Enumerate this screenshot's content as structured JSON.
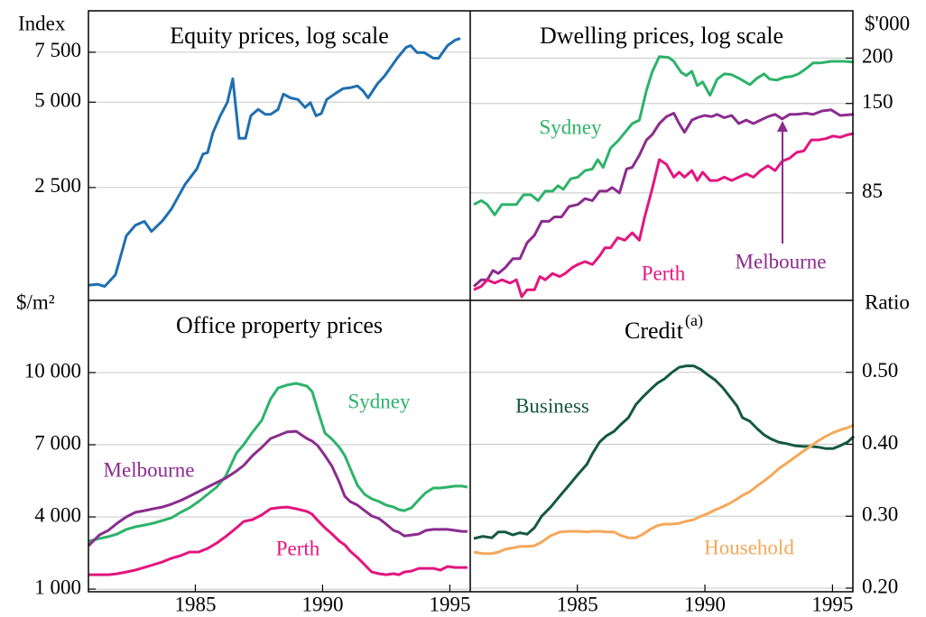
{
  "chart_data": [
    {
      "type": "line",
      "title": "Equity prices, log scale",
      "y_unit": "Index",
      "log_scale": true,
      "grid": true,
      "xlim": [
        1980.8,
        1995.8
      ],
      "ylim": [
        1000,
        10500
      ],
      "yticks": [
        {
          "value": 2500,
          "label": "2 500"
        },
        {
          "value": 5000,
          "label": "5 000"
        },
        {
          "value": 7500,
          "label": "7 500"
        }
      ],
      "series": [
        {
          "color": "#1f6fb0",
          "x": [
            1980.8,
            1981.15,
            1981.44,
            1981.86,
            1982.29,
            1982.64,
            1983.0,
            1983.28,
            1983.71,
            1984.06,
            1984.59,
            1985.06,
            1985.3,
            1985.48,
            1985.69,
            1985.98,
            1986.26,
            1986.47,
            1986.72,
            1986.97,
            1987.18,
            1987.47,
            1987.75,
            1987.96,
            1988.25,
            1988.46,
            1988.74,
            1989.03,
            1989.31,
            1989.52,
            1989.74,
            1989.95,
            1990.16,
            1990.52,
            1990.8,
            1991.08,
            1991.37,
            1991.58,
            1991.79,
            1992.15,
            1992.43,
            1992.93,
            1993.28,
            1993.46,
            1993.71,
            1993.99,
            1994.35,
            1994.56,
            1994.91,
            1995.2,
            1995.41
          ],
          "values": [
            1130,
            1140,
            1120,
            1230,
            1690,
            1840,
            1900,
            1750,
            1910,
            2100,
            2560,
            2910,
            3280,
            3320,
            3900,
            4480,
            5000,
            6050,
            3730,
            3730,
            4480,
            4720,
            4530,
            4530,
            4720,
            5340,
            5180,
            5110,
            4790,
            4980,
            4480,
            4560,
            5110,
            5380,
            5580,
            5620,
            5710,
            5490,
            5180,
            5800,
            6180,
            7150,
            7800,
            7920,
            7480,
            7480,
            7150,
            7150,
            7920,
            8270,
            8400
          ]
        }
      ]
    },
    {
      "type": "line",
      "title": "Dwelling prices, log scale",
      "y_unit": "$'000",
      "log_scale": true,
      "grid": true,
      "xlim": [
        1980.8,
        1995.8
      ],
      "ylim": [
        43,
        270
      ],
      "yticks": [
        85,
        150,
        200
      ],
      "series": [
        {
          "name": "Sydney",
          "color": "#2db36a",
          "x": [
            1980.94,
            1981.23,
            1981.47,
            1981.76,
            1982.04,
            1982.36,
            1982.61,
            1982.89,
            1983.18,
            1983.46,
            1983.74,
            1984.03,
            1984.24,
            1984.45,
            1984.74,
            1985.02,
            1985.3,
            1985.59,
            1985.8,
            1986.01,
            1986.3,
            1986.58,
            1986.79,
            1987.15,
            1987.43,
            1987.71,
            1987.93,
            1988.21,
            1988.57,
            1988.78,
            1989.06,
            1989.27,
            1989.49,
            1989.7,
            1989.91,
            1990.2,
            1990.48,
            1990.76,
            1991.05,
            1991.4,
            1991.76,
            1992.04,
            1992.32,
            1992.54,
            1992.82,
            1993.1,
            1993.39,
            1993.67,
            1993.96,
            1994.24,
            1994.52,
            1994.95,
            1995.48,
            1995.84
          ],
          "values": [
            79,
            81,
            79,
            74,
            79,
            79,
            79,
            84,
            84,
            81,
            86,
            86,
            89,
            87,
            93,
            94,
            98,
            99,
            105,
            100,
            113,
            118,
            123,
            132,
            135,
            163,
            183,
            202,
            201,
            196,
            183,
            179,
            184,
            168,
            172,
            158,
            175,
            181,
            180,
            175,
            169,
            176,
            181,
            175,
            174,
            177,
            178,
            181,
            187,
            194,
            194,
            196,
            196,
            195
          ]
        },
        {
          "name": "Melbourne",
          "color": "#8b2c8e",
          "x": [
            1980.94,
            1981.23,
            1981.47,
            1981.69,
            1981.9,
            1982.18,
            1982.47,
            1982.75,
            1983.03,
            1983.32,
            1983.6,
            1983.89,
            1984.1,
            1984.38,
            1984.67,
            1985.02,
            1985.3,
            1985.59,
            1985.87,
            1986.15,
            1986.37,
            1986.65,
            1986.93,
            1987.15,
            1987.43,
            1987.71,
            1987.93,
            1988.21,
            1988.49,
            1988.78,
            1988.99,
            1989.2,
            1989.49,
            1989.7,
            1989.98,
            1990.27,
            1990.48,
            1990.76,
            1991.05,
            1991.33,
            1991.62,
            1991.9,
            1992.18,
            1992.47,
            1992.75,
            1993.03,
            1993.32,
            1993.6,
            1993.96,
            1994.24,
            1994.59,
            1994.95,
            1995.3,
            1995.84
          ],
          "values": [
            47,
            49,
            49,
            52,
            51,
            53,
            56,
            56,
            62,
            65,
            71,
            71,
            73,
            73,
            78,
            79,
            82,
            81,
            86,
            86,
            88,
            85,
            99,
            100,
            108,
            119,
            123,
            132,
            138,
            141,
            132,
            125,
            135,
            137,
            139,
            138,
            140,
            137,
            139,
            132,
            135,
            132,
            135,
            138,
            140,
            136,
            140,
            140,
            141,
            140,
            143,
            144,
            139,
            140
          ]
        },
        {
          "name": "Perth",
          "color": "#e2167f",
          "x": [
            1980.94,
            1981.23,
            1981.47,
            1981.76,
            1982.04,
            1982.36,
            1982.61,
            1982.82,
            1983.03,
            1983.32,
            1983.53,
            1983.74,
            1984.03,
            1984.31,
            1984.52,
            1984.81,
            1985.02,
            1985.3,
            1985.59,
            1985.87,
            1986.08,
            1986.3,
            1986.58,
            1986.86,
            1987.15,
            1987.43,
            1987.64,
            1987.93,
            1988.21,
            1988.49,
            1988.78,
            1988.99,
            1989.2,
            1989.49,
            1989.7,
            1989.91,
            1990.2,
            1990.48,
            1990.76,
            1991.05,
            1991.33,
            1991.62,
            1991.9,
            1992.18,
            1992.47,
            1992.75,
            1993.03,
            1993.32,
            1993.6,
            1993.88,
            1994.17,
            1994.45,
            1994.74,
            1995.02,
            1995.3,
            1995.59,
            1995.84
          ],
          "values": [
            46,
            47,
            49,
            48,
            49,
            48,
            49,
            44,
            46,
            46,
            50,
            49,
            51,
            50,
            51,
            53,
            54,
            55,
            54,
            57,
            60,
            60,
            64,
            63,
            66,
            63,
            73,
            87,
            105,
            102,
            94,
            97,
            94,
            98,
            92,
            97,
            92,
            92,
            94,
            92,
            94,
            96,
            94,
            98,
            101,
            98,
            104,
            106,
            110,
            111,
            119,
            119,
            120,
            122,
            121,
            123,
            124
          ]
        }
      ]
    },
    {
      "type": "line",
      "title": "Office property prices",
      "y_unit": "$/m²",
      "log_scale": false,
      "grid": true,
      "xlim": [
        1980.8,
        1995.8
      ],
      "ylim": [
        890,
        13000
      ],
      "xticks": [
        1985,
        1990,
        1995
      ],
      "yticks": [
        {
          "value": 1000,
          "label": "1 000"
        },
        {
          "value": 4000,
          "label": "4 000"
        },
        {
          "value": 7000,
          "label": "7 000"
        },
        {
          "value": 10000,
          "label": "10 000"
        }
      ],
      "x": [
        1980.8,
        1981.23,
        1981.58,
        1981.93,
        1982.29,
        1982.64,
        1983.0,
        1983.35,
        1983.71,
        1984.06,
        1984.42,
        1984.77,
        1985.13,
        1985.48,
        1985.84,
        1986.19,
        1986.62,
        1986.9,
        1987.25,
        1987.61,
        1987.96,
        1988.25,
        1988.6,
        1988.96,
        1989.38,
        1989.59,
        1989.81,
        1990.09,
        1990.37,
        1990.66,
        1990.87,
        1991.08,
        1991.37,
        1991.65,
        1991.93,
        1992.22,
        1992.5,
        1992.79,
        1993.0,
        1993.21,
        1993.49,
        1993.78,
        1994.06,
        1994.35,
        1994.63,
        1994.91,
        1995.2,
        1995.48,
        1995.69
      ],
      "series": [
        {
          "name": "Sydney",
          "color": "#2db36a",
          "values": [
            2990,
            3100,
            3180,
            3290,
            3480,
            3590,
            3660,
            3740,
            3850,
            3960,
            4190,
            4380,
            4640,
            4940,
            5240,
            5690,
            6660,
            7000,
            7530,
            8010,
            8910,
            9360,
            9480,
            9550,
            9440,
            9210,
            8430,
            7490,
            7230,
            6890,
            6550,
            6030,
            5310,
            4940,
            4750,
            4640,
            4490,
            4410,
            4300,
            4260,
            4380,
            4710,
            5010,
            5200,
            5200,
            5240,
            5280,
            5280,
            5240
          ]
        },
        {
          "name": "Melbourne",
          "color": "#8b2c8e",
          "values": [
            2800,
            3250,
            3440,
            3740,
            4000,
            4190,
            4260,
            4340,
            4410,
            4530,
            4680,
            4860,
            5050,
            5240,
            5430,
            5610,
            5910,
            6140,
            6550,
            6890,
            7260,
            7380,
            7530,
            7560,
            7260,
            7150,
            6960,
            6550,
            6100,
            5430,
            4860,
            4640,
            4490,
            4260,
            4040,
            3930,
            3700,
            3440,
            3360,
            3210,
            3250,
            3290,
            3440,
            3480,
            3480,
            3480,
            3440,
            3400,
            3400
          ]
        },
        {
          "name": "Perth",
          "color": "#e2167f",
          "values": [
            1600,
            1600,
            1600,
            1640,
            1710,
            1790,
            1900,
            2010,
            2130,
            2280,
            2390,
            2540,
            2540,
            2690,
            2910,
            3180,
            3550,
            3810,
            3890,
            4080,
            4340,
            4380,
            4410,
            4340,
            4230,
            4110,
            3850,
            3550,
            3290,
            2990,
            2840,
            2580,
            2310,
            2010,
            1710,
            1640,
            1600,
            1640,
            1600,
            1710,
            1750,
            1860,
            1860,
            1860,
            1790,
            1940,
            1900,
            1900,
            1900
          ]
        }
      ]
    },
    {
      "type": "line",
      "title": "Credit",
      "title_superscript": "(a)",
      "y_unit": "Ratio",
      "log_scale": false,
      "grid": true,
      "xlim": [
        1980.8,
        1995.8
      ],
      "ylim": [
        0.195,
        0.6
      ],
      "xticks": [
        1985,
        1990,
        1995
      ],
      "yticks": [
        {
          "value": 0.2,
          "label": "0.20"
        },
        {
          "value": 0.3,
          "label": "0.30"
        },
        {
          "value": 0.4,
          "label": "0.40"
        },
        {
          "value": 0.5,
          "label": "0.50"
        }
      ],
      "x": [
        1980.94,
        1981.3,
        1981.65,
        1981.9,
        1982.18,
        1982.47,
        1982.75,
        1983.03,
        1983.32,
        1983.6,
        1983.96,
        1984.31,
        1984.67,
        1985.02,
        1985.37,
        1985.59,
        1985.87,
        1986.15,
        1986.44,
        1986.72,
        1987.0,
        1987.29,
        1987.57,
        1987.86,
        1988.14,
        1988.42,
        1988.71,
        1988.99,
        1989.27,
        1989.56,
        1989.84,
        1990.13,
        1990.41,
        1990.69,
        1990.98,
        1991.26,
        1991.47,
        1991.76,
        1992.04,
        1992.32,
        1992.61,
        1992.89,
        1993.18,
        1993.53,
        1993.88,
        1994.17,
        1994.45,
        1994.74,
        1995.02,
        1995.3,
        1995.59,
        1995.84
      ],
      "series": [
        {
          "name": "Business",
          "color": "#14593f",
          "values": [
            0.269,
            0.272,
            0.27,
            0.278,
            0.278,
            0.274,
            0.277,
            0.275,
            0.284,
            0.3,
            0.313,
            0.328,
            0.343,
            0.358,
            0.372,
            0.387,
            0.403,
            0.412,
            0.418,
            0.428,
            0.437,
            0.455,
            0.466,
            0.476,
            0.485,
            0.491,
            0.5,
            0.507,
            0.509,
            0.509,
            0.504,
            0.496,
            0.489,
            0.479,
            0.466,
            0.453,
            0.437,
            0.432,
            0.422,
            0.413,
            0.407,
            0.403,
            0.401,
            0.398,
            0.397,
            0.397,
            0.396,
            0.394,
            0.394,
            0.398,
            0.403,
            0.411
          ]
        },
        {
          "name": "Household",
          "color": "#f5a85a",
          "values": [
            0.25,
            0.248,
            0.248,
            0.25,
            0.254,
            0.256,
            0.258,
            0.258,
            0.259,
            0.264,
            0.273,
            0.278,
            0.279,
            0.279,
            0.278,
            0.279,
            0.279,
            0.278,
            0.278,
            0.273,
            0.27,
            0.27,
            0.275,
            0.282,
            0.287,
            0.289,
            0.289,
            0.29,
            0.293,
            0.295,
            0.3,
            0.304,
            0.309,
            0.313,
            0.318,
            0.324,
            0.329,
            0.334,
            0.342,
            0.349,
            0.357,
            0.366,
            0.373,
            0.382,
            0.391,
            0.398,
            0.405,
            0.411,
            0.416,
            0.42,
            0.423,
            0.427
          ]
        }
      ]
    }
  ]
}
